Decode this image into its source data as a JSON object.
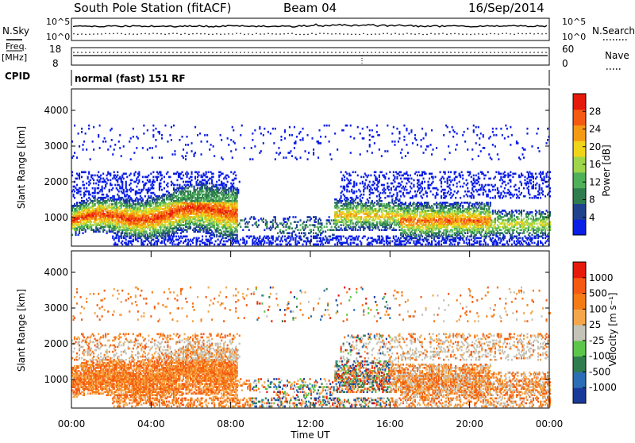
{
  "header": {
    "station": "South Pole Station (fitACF)",
    "beam": "Beam 04",
    "date": "16/Sep/2014"
  },
  "top_panels": {
    "nsky_label": "N.Sky",
    "nsearch_label": "N.Search",
    "nsky_ticks": [
      "10^5",
      "10^0"
    ],
    "nsearch_ticks": [
      "10^5",
      "10^0"
    ],
    "freq_label_1": "Freq.",
    "freq_label_2": "[MHz]",
    "freq_ticks": [
      "18",
      "8"
    ],
    "nave_label": "Nave",
    "nave_ticks": [
      "60",
      "0"
    ],
    "cpid_label": "CPID",
    "cpid_value": "normal (fast) 151 RF"
  },
  "chart_data": [
    {
      "type": "heatmap",
      "name": "power",
      "ylabel": "Slant Range [km]",
      "xlabel": "",
      "ylim": [
        200,
        4600
      ],
      "xlim": [
        0,
        24
      ],
      "y_ticks": [
        1000,
        2000,
        3000,
        4000
      ],
      "colorbar_label": "Power [dB]",
      "colorbar_ticks": [
        "28",
        "24",
        "20",
        "16",
        "12",
        "8",
        "4"
      ],
      "colors": [
        "#0a1ee6",
        "#20418c",
        "#2f7d4f",
        "#4fb05a",
        "#9fd54a",
        "#f0d419",
        "#f59a15",
        "#f55a12",
        "#e61a0a"
      ]
    },
    {
      "type": "heatmap",
      "name": "velocity",
      "ylabel": "Slant Range [km]",
      "xlabel": "Time UT",
      "ylim": [
        200,
        4600
      ],
      "xlim": [
        0,
        24
      ],
      "y_ticks": [
        1000,
        2000,
        3000,
        4000
      ],
      "x_ticks": [
        "00:00",
        "04:00",
        "08:00",
        "12:00",
        "16:00",
        "20:00",
        "00:00"
      ],
      "colorbar_label": "Velocity [m s⁻¹]",
      "colorbar_ticks": [
        "1000",
        "500",
        "100",
        "25",
        "-25",
        "-100",
        "-500",
        "-1000"
      ],
      "colors": [
        "#1a3a9a",
        "#2a6fb5",
        "#2f7d4f",
        "#5cc64a",
        "#c3c3b8",
        "#f5a64a",
        "#f57b15",
        "#f55a12",
        "#e61a0a"
      ]
    }
  ]
}
